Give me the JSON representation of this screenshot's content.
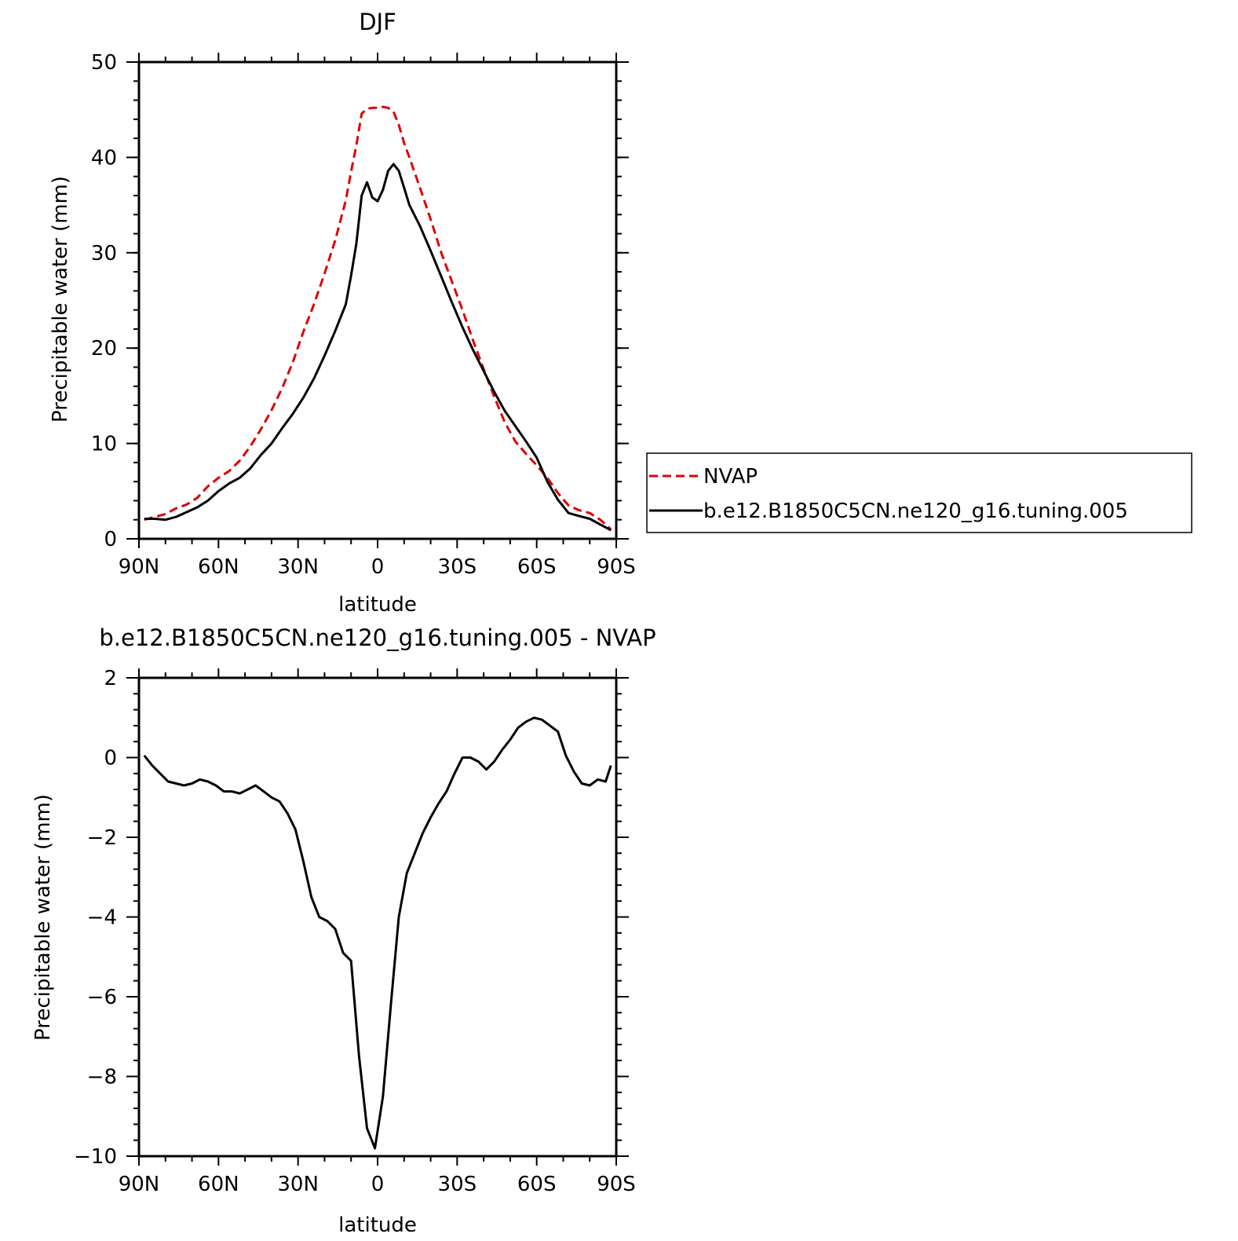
{
  "chart_data": [
    {
      "type": "line",
      "title": "DJF",
      "xlabel": "latitude",
      "ylabel": "Precipitable water (mm)",
      "xlim": [
        90,
        -90
      ],
      "ylim": [
        0,
        50
      ],
      "x_ticks": [
        {
          "value": 90,
          "label": "90N"
        },
        {
          "value": 60,
          "label": "60N"
        },
        {
          "value": 30,
          "label": "30N"
        },
        {
          "value": 0,
          "label": "0"
        },
        {
          "value": -30,
          "label": "30S"
        },
        {
          "value": -60,
          "label": "60S"
        },
        {
          "value": -90,
          "label": "90S"
        }
      ],
      "y_ticks": [
        {
          "value": 0,
          "label": "0"
        },
        {
          "value": 10,
          "label": "10"
        },
        {
          "value": 20,
          "label": "20"
        },
        {
          "value": 30,
          "label": "30"
        },
        {
          "value": 40,
          "label": "40"
        },
        {
          "value": 50,
          "label": "50"
        }
      ],
      "grid": false,
      "legend": {
        "placement": "right"
      },
      "series": [
        {
          "name": "NVAP",
          "color": "#e00000",
          "dash": "dashed",
          "x": [
            88,
            84,
            80,
            76,
            72,
            68,
            64,
            60,
            56,
            52,
            48,
            44,
            40,
            36,
            32,
            28,
            24,
            20,
            16,
            12,
            10,
            8,
            6,
            4,
            2,
            0,
            -2,
            -4,
            -6,
            -8,
            -10,
            -12,
            -16,
            -20,
            -24,
            -28,
            -32,
            -36,
            -40,
            -44,
            -48,
            -52,
            -56,
            -60,
            -64,
            -68,
            -72,
            -76,
            -80,
            -84,
            -88
          ],
          "y": [
            2.0,
            2.3,
            2.6,
            3.2,
            3.6,
            4.3,
            5.5,
            6.4,
            7.1,
            8.2,
            9.7,
            11.5,
            13.5,
            15.8,
            18.5,
            21.7,
            24.6,
            27.8,
            31.3,
            35.5,
            38.5,
            41.3,
            44.6,
            45.1,
            45.2,
            45.2,
            45.3,
            45.2,
            44.8,
            43.4,
            41.5,
            40.0,
            36.8,
            33.5,
            30.0,
            27.0,
            24.0,
            20.8,
            17.8,
            14.9,
            12.2,
            10.2,
            8.9,
            7.7,
            6.4,
            4.8,
            3.5,
            3.0,
            2.7,
            2.0,
            1.0
          ]
        },
        {
          "name": "b.e12.B1850C5CN.ne120_g16.tuning.005",
          "color": "#000000",
          "dash": "solid",
          "x": [
            88,
            84,
            80,
            76,
            72,
            68,
            64,
            60,
            56,
            52,
            48,
            44,
            40,
            36,
            32,
            28,
            24,
            20,
            16,
            12,
            10,
            8,
            6,
            4,
            2,
            0,
            -2,
            -4,
            -6,
            -8,
            -10,
            -12,
            -16,
            -20,
            -24,
            -28,
            -32,
            -36,
            -40,
            -44,
            -48,
            -52,
            -56,
            -60,
            -64,
            -68,
            -72,
            -76,
            -80,
            -84,
            -88
          ],
          "y": [
            2.1,
            2.1,
            2.0,
            2.3,
            2.8,
            3.3,
            4.0,
            5.0,
            5.8,
            6.4,
            7.4,
            8.8,
            10.0,
            11.6,
            13.1,
            14.8,
            16.8,
            19.2,
            21.8,
            24.6,
            27.6,
            31.0,
            36.0,
            37.4,
            35.8,
            35.4,
            36.6,
            38.6,
            39.3,
            38.6,
            36.8,
            35.0,
            32.8,
            30.2,
            27.5,
            24.8,
            22.2,
            19.8,
            17.6,
            15.4,
            13.4,
            11.8,
            10.2,
            8.5,
            6.0,
            4.1,
            2.7,
            2.4,
            2.1,
            1.5,
            0.9
          ]
        }
      ]
    },
    {
      "type": "line",
      "title": "b.e12.B1850C5CN.ne120_g16.tuning.005 - NVAP",
      "xlabel": "latitude",
      "ylabel": "Precipitable water (mm)",
      "xlim": [
        90,
        -90
      ],
      "ylim": [
        -10,
        2
      ],
      "x_ticks": [
        {
          "value": 90,
          "label": "90N"
        },
        {
          "value": 60,
          "label": "60N"
        },
        {
          "value": 30,
          "label": "30N"
        },
        {
          "value": 0,
          "label": "0"
        },
        {
          "value": -30,
          "label": "30S"
        },
        {
          "value": -60,
          "label": "60S"
        },
        {
          "value": -90,
          "label": "90S"
        }
      ],
      "y_ticks": [
        {
          "value": 2,
          "label": "2"
        },
        {
          "value": 0,
          "label": "0"
        },
        {
          "value": -2,
          "label": "−2"
        },
        {
          "value": -4,
          "label": "−4"
        },
        {
          "value": -6,
          "label": "−6"
        },
        {
          "value": -8,
          "label": "−8"
        },
        {
          "value": -10,
          "label": "−10"
        }
      ],
      "grid": false,
      "series": [
        {
          "color": "#000000",
          "dash": "solid",
          "x": [
            88,
            85,
            82,
            79,
            76,
            73,
            70,
            67,
            64,
            61,
            58,
            55,
            52,
            49,
            46,
            43,
            40,
            37,
            34,
            31,
            28,
            25,
            22,
            19,
            16,
            13,
            10,
            7,
            4,
            1,
            -2,
            -5,
            -8,
            -11,
            -14,
            -17,
            -20,
            -23,
            -26,
            -29,
            -32,
            -35,
            -38,
            -41,
            -44,
            -47,
            -50,
            -53,
            -56,
            -59,
            -62,
            -65,
            -68,
            -71,
            -74,
            -77,
            -80,
            -83,
            -86,
            -88
          ],
          "y": [
            0.05,
            -0.2,
            -0.4,
            -0.6,
            -0.65,
            -0.7,
            -0.65,
            -0.55,
            -0.6,
            -0.7,
            -0.85,
            -0.85,
            -0.9,
            -0.8,
            -0.7,
            -0.85,
            -1.0,
            -1.1,
            -1.4,
            -1.8,
            -2.6,
            -3.5,
            -4.0,
            -4.1,
            -4.3,
            -4.9,
            -5.1,
            -7.5,
            -9.3,
            -9.8,
            -8.5,
            -6.2,
            -4.0,
            -2.9,
            -2.4,
            -1.9,
            -1.5,
            -1.15,
            -0.85,
            -0.4,
            0.0,
            0.0,
            -0.1,
            -0.3,
            -0.1,
            0.2,
            0.45,
            0.75,
            0.9,
            1.0,
            0.95,
            0.8,
            0.65,
            0.05,
            -0.35,
            -0.65,
            -0.7,
            -0.55,
            -0.6,
            -0.2
          ]
        }
      ]
    }
  ]
}
